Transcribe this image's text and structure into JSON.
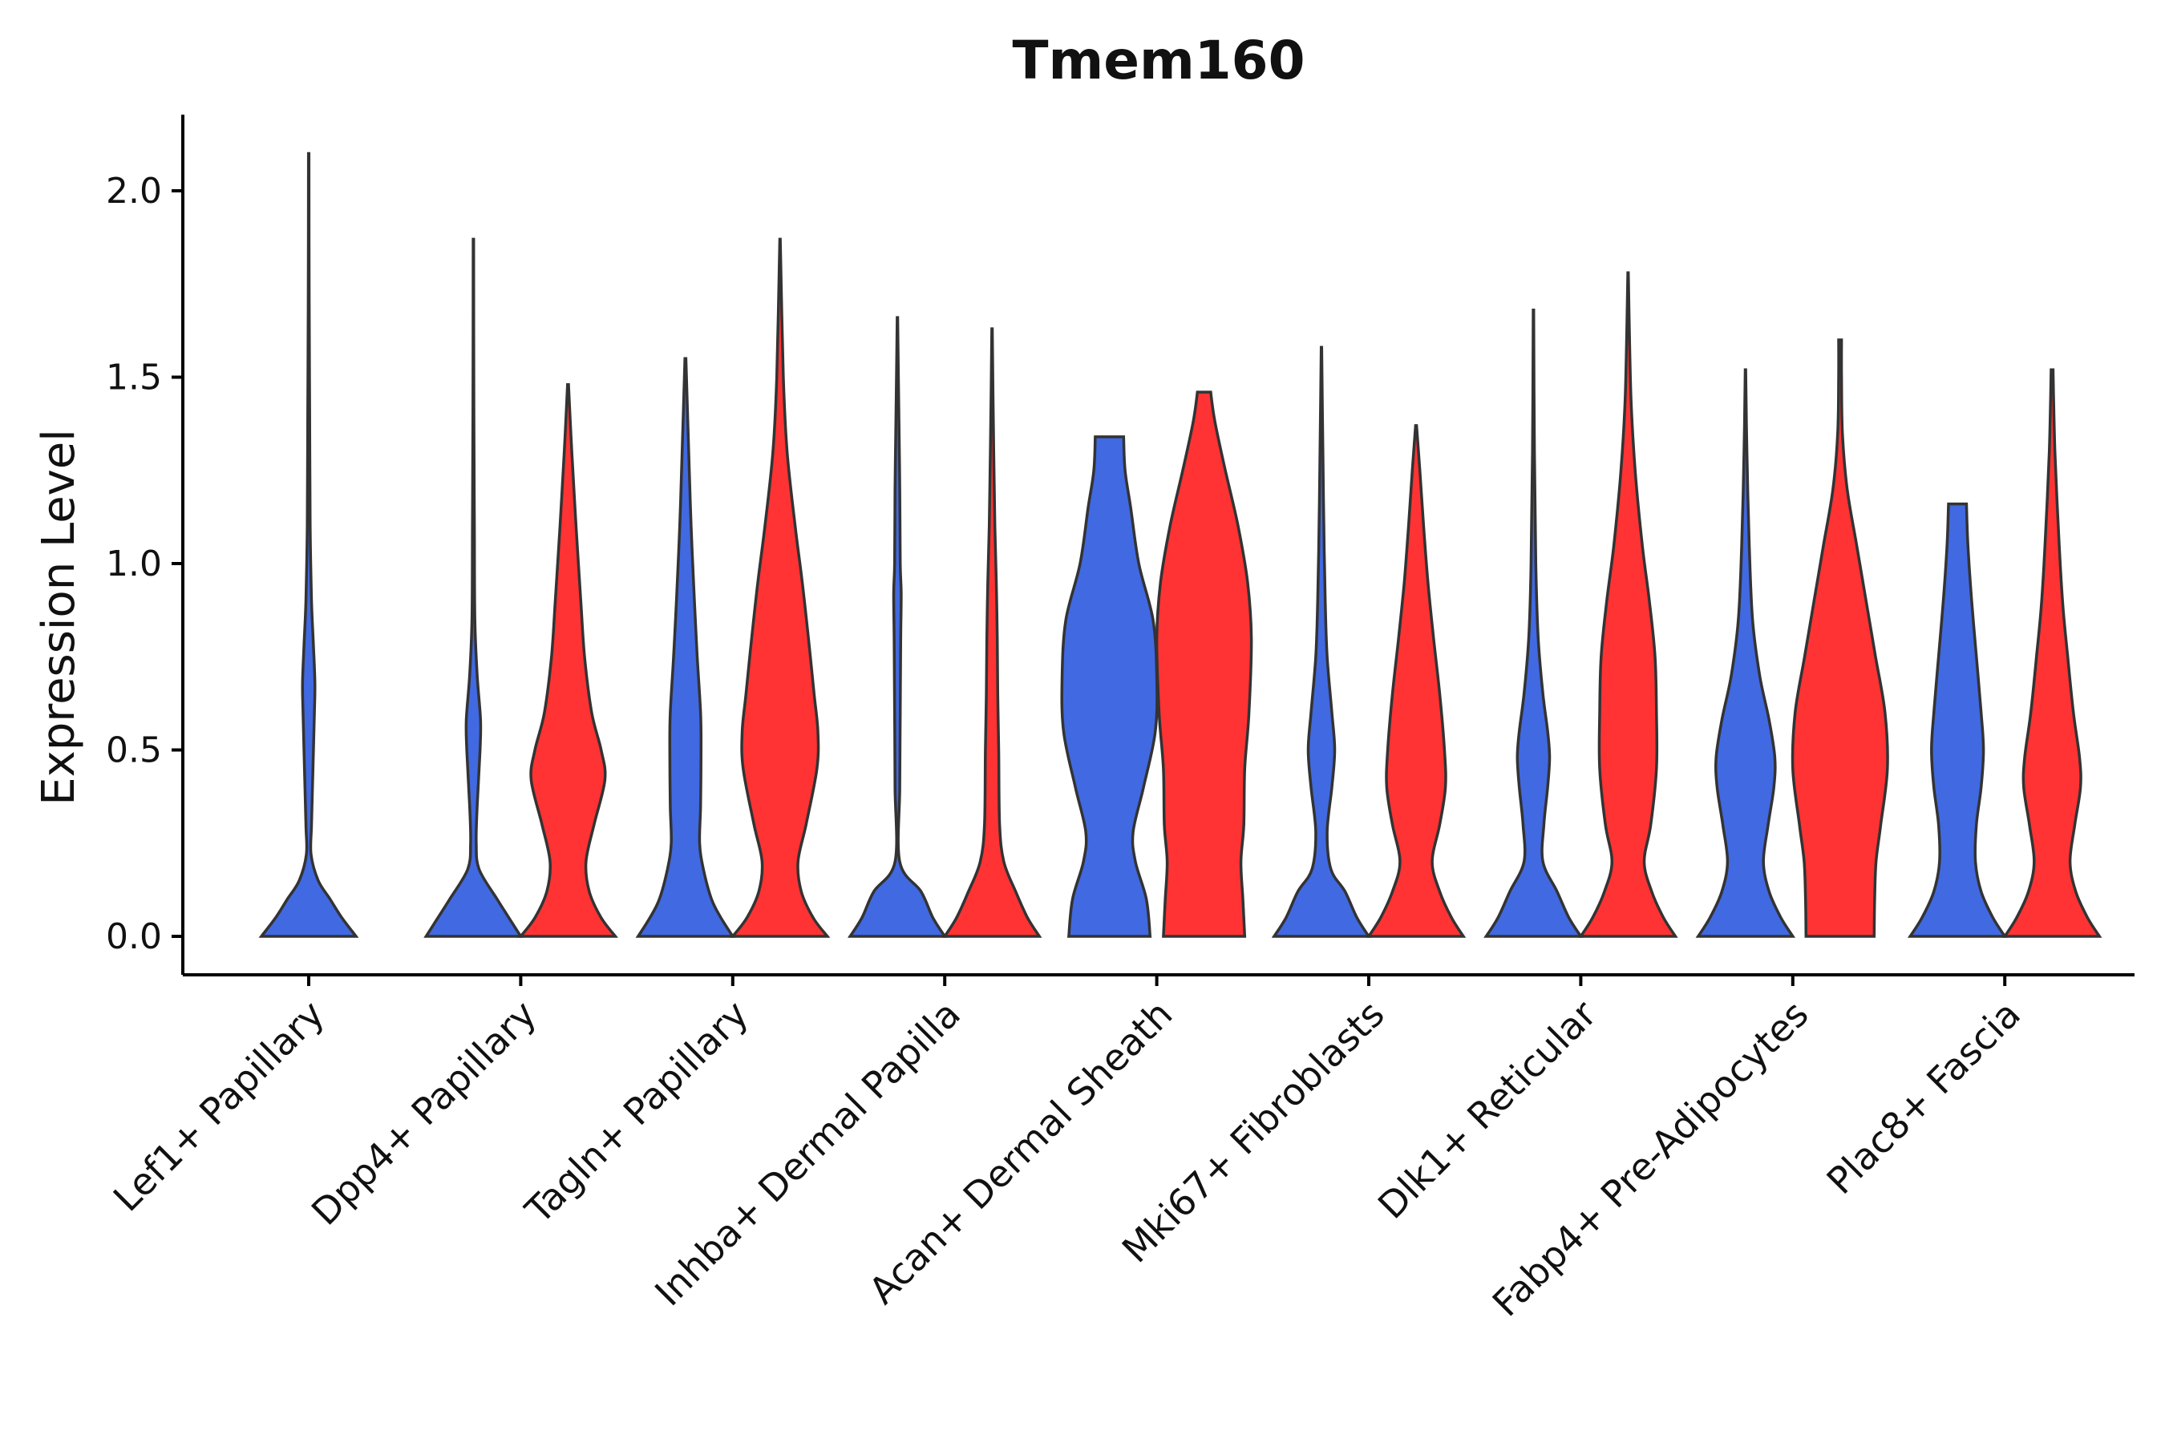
{
  "chart_data": {
    "type": "violin",
    "title": "Tmem160",
    "xlabel": "",
    "ylabel": "Expression Level",
    "ylim": [
      -0.1,
      2.2
    ],
    "yticks": [
      "0.0",
      "0.5",
      "1.0",
      "1.5",
      "2.0"
    ],
    "ytick_values": [
      0,
      0.5,
      1.0,
      1.5,
      2.0
    ],
    "grid": false,
    "legend": "none",
    "series": [
      {
        "name": "group1",
        "color": "#4169E1"
      },
      {
        "name": "group2",
        "color": "#FF3333"
      }
    ],
    "categories": [
      "Lef1+ Papillary",
      "Dpp4+ Papillary",
      "Tagln+ Papillary",
      "Inhba+ Dermal Papilla",
      "Acan+ Dermal Sheath",
      "Mki67+ Fibroblasts",
      "Dlk1+ Reticular",
      "Fabp4+ Pre-Adipocytes",
      "Plac8+ Fascia"
    ],
    "violins": [
      {
        "category": "Lef1+ Papillary",
        "group": "group1",
        "max": 2.1,
        "profile": [
          [
            0,
            1
          ],
          [
            0.05,
            0.7
          ],
          [
            0.1,
            0.45
          ],
          [
            0.15,
            0.2
          ],
          [
            0.22,
            0.05
          ],
          [
            0.3,
            0.06
          ],
          [
            0.45,
            0.09
          ],
          [
            0.6,
            0.12
          ],
          [
            0.68,
            0.13
          ],
          [
            0.78,
            0.1
          ],
          [
            0.9,
            0.06
          ],
          [
            1.1,
            0.03
          ],
          [
            1.4,
            0.02
          ],
          [
            1.7,
            0.01
          ],
          [
            2.1,
            0.005
          ]
        ]
      },
      {
        "category": "Dpp4+ Papillary",
        "group": "group1",
        "max": 1.87,
        "profile": [
          [
            0,
            1
          ],
          [
            0.05,
            0.75
          ],
          [
            0.1,
            0.5
          ],
          [
            0.18,
            0.12
          ],
          [
            0.25,
            0.06
          ],
          [
            0.35,
            0.08
          ],
          [
            0.5,
            0.14
          ],
          [
            0.58,
            0.15
          ],
          [
            0.7,
            0.08
          ],
          [
            0.85,
            0.03
          ],
          [
            1.1,
            0.02
          ],
          [
            1.4,
            0.01
          ],
          [
            1.87,
            0.005
          ]
        ]
      },
      {
        "category": "Dpp4+ Papillary",
        "group": "group2",
        "max": 1.48,
        "profile": [
          [
            0,
            1
          ],
          [
            0.05,
            0.7
          ],
          [
            0.12,
            0.45
          ],
          [
            0.2,
            0.38
          ],
          [
            0.3,
            0.55
          ],
          [
            0.42,
            0.78
          ],
          [
            0.5,
            0.7
          ],
          [
            0.6,
            0.5
          ],
          [
            0.75,
            0.35
          ],
          [
            0.9,
            0.27
          ],
          [
            1.1,
            0.17
          ],
          [
            1.3,
            0.08
          ],
          [
            1.48,
            0.01
          ]
        ]
      },
      {
        "category": "Tagln+ Papillary",
        "group": "group1",
        "max": 1.55,
        "profile": [
          [
            0,
            1
          ],
          [
            0.05,
            0.75
          ],
          [
            0.1,
            0.55
          ],
          [
            0.18,
            0.38
          ],
          [
            0.25,
            0.3
          ],
          [
            0.35,
            0.32
          ],
          [
            0.5,
            0.33
          ],
          [
            0.6,
            0.32
          ],
          [
            0.75,
            0.25
          ],
          [
            0.9,
            0.19
          ],
          [
            1.1,
            0.12
          ],
          [
            1.3,
            0.07
          ],
          [
            1.55,
            0.01
          ]
        ]
      },
      {
        "category": "Tagln+ Papillary",
        "group": "group2",
        "max": 1.87,
        "profile": [
          [
            0,
            1
          ],
          [
            0.05,
            0.7
          ],
          [
            0.12,
            0.45
          ],
          [
            0.2,
            0.38
          ],
          [
            0.3,
            0.55
          ],
          [
            0.45,
            0.78
          ],
          [
            0.55,
            0.8
          ],
          [
            0.65,
            0.72
          ],
          [
            0.8,
            0.6
          ],
          [
            0.95,
            0.47
          ],
          [
            1.1,
            0.32
          ],
          [
            1.3,
            0.15
          ],
          [
            1.5,
            0.07
          ],
          [
            1.87,
            0.005
          ]
        ]
      },
      {
        "category": "Inhba+ Dermal Papilla",
        "group": "group1",
        "max": 1.66,
        "profile": [
          [
            0,
            1
          ],
          [
            0.05,
            0.75
          ],
          [
            0.12,
            0.5
          ],
          [
            0.2,
            0.05
          ],
          [
            0.4,
            0.05
          ],
          [
            0.6,
            0.06
          ],
          [
            0.8,
            0.07
          ],
          [
            0.92,
            0.08
          ],
          [
            1.0,
            0.06
          ],
          [
            1.2,
            0.05
          ],
          [
            1.4,
            0.03
          ],
          [
            1.66,
            0.005
          ]
        ]
      },
      {
        "category": "Inhba+ Dermal Papilla",
        "group": "group2",
        "max": 1.63,
        "profile": [
          [
            0,
            1
          ],
          [
            0.05,
            0.75
          ],
          [
            0.12,
            0.5
          ],
          [
            0.2,
            0.25
          ],
          [
            0.3,
            0.16
          ],
          [
            0.5,
            0.14
          ],
          [
            0.65,
            0.12
          ],
          [
            0.8,
            0.11
          ],
          [
            0.95,
            0.09
          ],
          [
            1.1,
            0.06
          ],
          [
            1.35,
            0.03
          ],
          [
            1.63,
            0.005
          ]
        ]
      },
      {
        "category": "Acan+ Dermal Sheath",
        "group": "group1",
        "max": 1.34,
        "profile": [
          [
            0,
            0.86
          ],
          [
            0.1,
            0.78
          ],
          [
            0.2,
            0.55
          ],
          [
            0.28,
            0.5
          ],
          [
            0.4,
            0.72
          ],
          [
            0.55,
            0.97
          ],
          [
            0.7,
            1
          ],
          [
            0.85,
            0.92
          ],
          [
            1.0,
            0.62
          ],
          [
            1.15,
            0.45
          ],
          [
            1.25,
            0.33
          ],
          [
            1.34,
            0.3
          ]
        ]
      },
      {
        "category": "Acan+ Dermal Sheath",
        "group": "group2",
        "max": 1.46,
        "profile": [
          [
            0,
            0.86
          ],
          [
            0.1,
            0.82
          ],
          [
            0.2,
            0.78
          ],
          [
            0.3,
            0.84
          ],
          [
            0.45,
            0.86
          ],
          [
            0.6,
            0.95
          ],
          [
            0.8,
            1
          ],
          [
            0.95,
            0.92
          ],
          [
            1.1,
            0.72
          ],
          [
            1.25,
            0.45
          ],
          [
            1.38,
            0.23
          ],
          [
            1.46,
            0.14
          ]
        ]
      },
      {
        "category": "Mki67+ Fibroblasts",
        "group": "group1",
        "max": 1.58,
        "profile": [
          [
            0,
            1
          ],
          [
            0.05,
            0.75
          ],
          [
            0.12,
            0.5
          ],
          [
            0.18,
            0.2
          ],
          [
            0.28,
            0.12
          ],
          [
            0.4,
            0.22
          ],
          [
            0.5,
            0.28
          ],
          [
            0.6,
            0.22
          ],
          [
            0.75,
            0.12
          ],
          [
            0.9,
            0.08
          ],
          [
            1.1,
            0.05
          ],
          [
            1.3,
            0.03
          ],
          [
            1.58,
            0.005
          ]
        ]
      },
      {
        "category": "Mki67+ Fibroblasts",
        "group": "group2",
        "max": 1.37,
        "profile": [
          [
            0,
            1
          ],
          [
            0.05,
            0.75
          ],
          [
            0.12,
            0.5
          ],
          [
            0.2,
            0.34
          ],
          [
            0.3,
            0.5
          ],
          [
            0.4,
            0.62
          ],
          [
            0.5,
            0.6
          ],
          [
            0.65,
            0.5
          ],
          [
            0.8,
            0.37
          ],
          [
            0.95,
            0.25
          ],
          [
            1.1,
            0.16
          ],
          [
            1.25,
            0.08
          ],
          [
            1.37,
            0.01
          ]
        ]
      },
      {
        "category": "Dlk1+ Reticular",
        "group": "group1",
        "max": 1.68,
        "profile": [
          [
            0,
            1
          ],
          [
            0.05,
            0.75
          ],
          [
            0.12,
            0.5
          ],
          [
            0.2,
            0.2
          ],
          [
            0.3,
            0.22
          ],
          [
            0.4,
            0.3
          ],
          [
            0.48,
            0.34
          ],
          [
            0.55,
            0.3
          ],
          [
            0.65,
            0.2
          ],
          [
            0.8,
            0.1
          ],
          [
            1.0,
            0.05
          ],
          [
            1.3,
            0.02
          ],
          [
            1.68,
            0.005
          ]
        ]
      },
      {
        "category": "Dlk1+ Reticular",
        "group": "group2",
        "max": 1.78,
        "profile": [
          [
            0,
            1
          ],
          [
            0.05,
            0.75
          ],
          [
            0.12,
            0.5
          ],
          [
            0.2,
            0.34
          ],
          [
            0.3,
            0.48
          ],
          [
            0.45,
            0.6
          ],
          [
            0.6,
            0.6
          ],
          [
            0.75,
            0.57
          ],
          [
            0.9,
            0.45
          ],
          [
            1.05,
            0.3
          ],
          [
            1.25,
            0.15
          ],
          [
            1.45,
            0.06
          ],
          [
            1.78,
            0.005
          ]
        ]
      },
      {
        "category": "Fabp4+ Pre-Adipocytes",
        "group": "group1",
        "max": 1.52,
        "profile": [
          [
            0,
            1
          ],
          [
            0.05,
            0.75
          ],
          [
            0.12,
            0.5
          ],
          [
            0.2,
            0.38
          ],
          [
            0.3,
            0.48
          ],
          [
            0.4,
            0.6
          ],
          [
            0.48,
            0.62
          ],
          [
            0.58,
            0.5
          ],
          [
            0.7,
            0.3
          ],
          [
            0.85,
            0.15
          ],
          [
            1.05,
            0.08
          ],
          [
            1.3,
            0.03
          ],
          [
            1.52,
            0.005
          ]
        ]
      },
      {
        "category": "Fabp4+ Pre-Adipocytes",
        "group": "group2",
        "max": 1.6,
        "profile": [
          [
            0,
            0.72
          ],
          [
            0.1,
            0.73
          ],
          [
            0.2,
            0.76
          ],
          [
            0.3,
            0.86
          ],
          [
            0.45,
            1
          ],
          [
            0.6,
            0.95
          ],
          [
            0.75,
            0.75
          ],
          [
            0.9,
            0.55
          ],
          [
            1.05,
            0.35
          ],
          [
            1.2,
            0.15
          ],
          [
            1.35,
            0.05
          ],
          [
            1.5,
            0.03
          ],
          [
            1.6,
            0.03
          ]
        ]
      },
      {
        "category": "Plac8+ Fascia",
        "group": "group1",
        "max": 1.16,
        "profile": [
          [
            0,
            1
          ],
          [
            0.05,
            0.75
          ],
          [
            0.12,
            0.5
          ],
          [
            0.2,
            0.38
          ],
          [
            0.3,
            0.4
          ],
          [
            0.4,
            0.5
          ],
          [
            0.5,
            0.55
          ],
          [
            0.6,
            0.5
          ],
          [
            0.75,
            0.4
          ],
          [
            0.9,
            0.3
          ],
          [
            1.05,
            0.22
          ],
          [
            1.16,
            0.19
          ]
        ]
      },
      {
        "category": "Plac8+ Fascia",
        "group": "group2",
        "max": 1.52,
        "profile": [
          [
            0,
            1
          ],
          [
            0.05,
            0.75
          ],
          [
            0.12,
            0.5
          ],
          [
            0.2,
            0.38
          ],
          [
            0.3,
            0.48
          ],
          [
            0.4,
            0.6
          ],
          [
            0.48,
            0.58
          ],
          [
            0.6,
            0.45
          ],
          [
            0.75,
            0.33
          ],
          [
            0.9,
            0.22
          ],
          [
            1.1,
            0.13
          ],
          [
            1.3,
            0.06
          ],
          [
            1.45,
            0.03
          ],
          [
            1.52,
            0.02
          ]
        ]
      }
    ]
  }
}
